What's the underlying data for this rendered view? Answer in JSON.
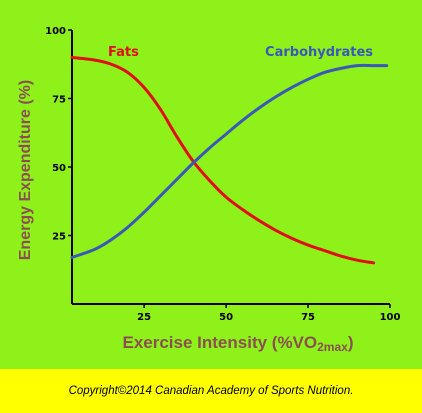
{
  "chart_data": {
    "type": "line",
    "xlabel": "Exercise Intensity (%VO",
    "xlabel_sub": "2max",
    "xlabel_end": ")",
    "ylabel": "Energy Expenditure (%)",
    "xlim": [
      3,
      100
    ],
    "ylim": [
      0,
      100
    ],
    "x_ticks": [
      25,
      50,
      75,
      100
    ],
    "y_ticks": [
      25,
      50,
      75,
      100
    ],
    "grid": false,
    "series": [
      {
        "name": "Fats",
        "color": "#e01010",
        "x": [
          3,
          10,
          15,
          20,
          25,
          30,
          35,
          40,
          45,
          50,
          55,
          60,
          65,
          70,
          75,
          80,
          85,
          90,
          95
        ],
        "y": [
          90,
          89,
          87.5,
          84.5,
          79,
          71,
          61,
          52,
          45,
          39,
          34.5,
          30.5,
          27,
          24,
          21.5,
          19.5,
          17.5,
          16,
          15
        ]
      },
      {
        "name": "Carbohydrates",
        "color": "#3a58b8",
        "x": [
          3,
          10,
          15,
          20,
          25,
          30,
          35,
          40,
          45,
          50,
          55,
          60,
          65,
          70,
          75,
          80,
          85,
          90,
          95,
          99
        ],
        "y": [
          17,
          20,
          23.5,
          28,
          33.5,
          39.5,
          45.5,
          51.5,
          57,
          62,
          67,
          71.5,
          75.5,
          79,
          82,
          84.5,
          86,
          87,
          87,
          87
        ]
      }
    ]
  },
  "footer": {
    "copyright": "Copyright©2014 Canadian Academy of Sports Nutrition."
  }
}
